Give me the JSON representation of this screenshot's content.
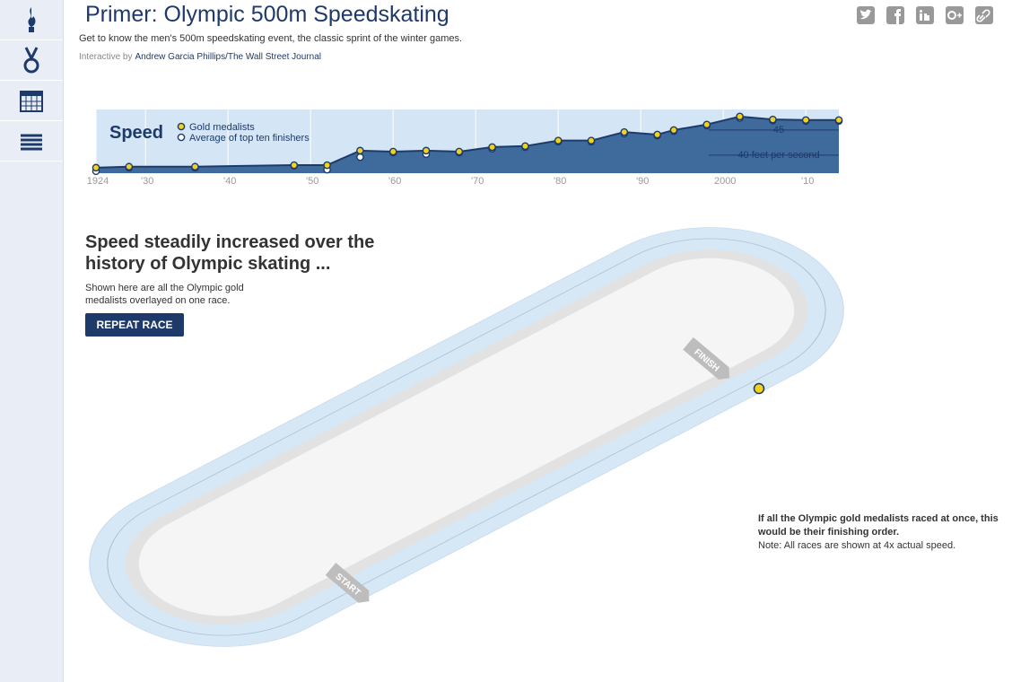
{
  "header": {
    "title": "Primer: Olympic 500m Speedskating",
    "subtitle": "Get to know the men's 500m speedskating event, the classic sprint of the winter games.",
    "credit_prefix": "Interactive by",
    "credit_link": "Andrew Garcia Phillips/The Wall Street Journal"
  },
  "chart_data": {
    "type": "line",
    "title": "Speed",
    "x": [
      1924,
      1928,
      1936,
      1948,
      1952,
      1956,
      1960,
      1964,
      1968,
      1972,
      1976,
      1980,
      1984,
      1988,
      1992,
      1994,
      1998,
      2002,
      2006,
      2010,
      2014
    ],
    "series": [
      {
        "name": "Gold medalists",
        "color": "#f2d21b",
        "values": [
          37.5,
          37.7,
          37.7,
          38.0,
          38.0,
          40.9,
          40.7,
          40.9,
          40.7,
          41.6,
          41.8,
          42.9,
          42.9,
          44.6,
          44.1,
          45.0,
          46.1,
          47.7,
          47.1,
          47.0,
          47.0
        ]
      },
      {
        "name": "Average of top ten finishers",
        "color": "#ffffff",
        "values": [
          36.8,
          37.5,
          37.5,
          37.9,
          37.1,
          39.6,
          40.5,
          40.2,
          40.5,
          41.3,
          41.6,
          42.7,
          42.7,
          44.3,
          43.9,
          44.8,
          45.9,
          47.4,
          46.9,
          46.8,
          46.8
        ]
      }
    ],
    "xlim": [
      1924,
      2014
    ],
    "xticks": [
      1924,
      {
        "value": 1930,
        "label": "'30"
      },
      {
        "value": 1940,
        "label": "'40"
      },
      {
        "value": 1950,
        "label": "'50"
      },
      {
        "value": 1960,
        "label": "'60"
      },
      {
        "value": 1970,
        "label": "'70"
      },
      {
        "value": 1980,
        "label": "'80"
      },
      {
        "value": 1990,
        "label": "'90"
      },
      2000,
      {
        "value": 2010,
        "label": "'10"
      }
    ],
    "ylim": [
      36.4,
      49.1
    ],
    "yticks": [
      {
        "value": 40,
        "label": "40 feet per second"
      },
      45
    ],
    "grid": true
  },
  "story": {
    "headline": "Speed steadily increased over the history of Olympic skating ...",
    "description": "Shown here are all the Olympic gold medalists overlayed on one race.",
    "button": "REPEAT RACE",
    "start_label": "START",
    "finish_label": "FINISH",
    "order_note": "If all the Olympic gold medalists raced at once, this would be their finishing order.",
    "speed_note": "Note: All races are shown at 4x actual speed."
  }
}
